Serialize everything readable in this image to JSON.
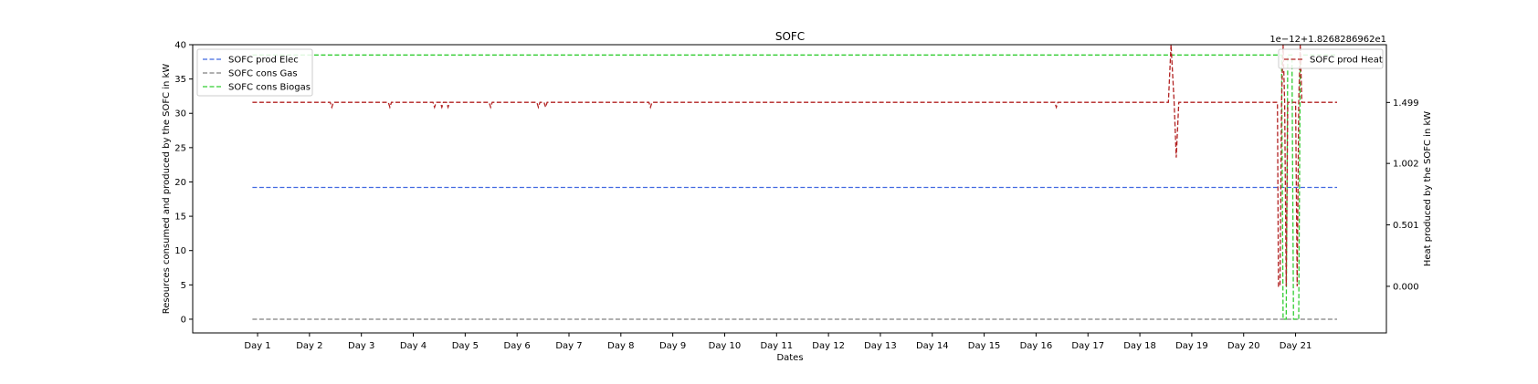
{
  "chart_data": {
    "type": "line",
    "title": "SOFC",
    "xlabel": "Dates",
    "ylabel": "Resources consumed and produced by the SOFC in kW",
    "ylabel_right": "Heat produced by the SOFC in kW",
    "offset_label_right": "1e−12+1.8268286962e1",
    "categories": [
      "Day 1",
      "Day 2",
      "Day 3",
      "Day 4",
      "Day 5",
      "Day 6",
      "Day 7",
      "Day 8",
      "Day 9",
      "Day 10",
      "Day 11",
      "Day 12",
      "Day 13",
      "Day 14",
      "Day 15",
      "Day 16",
      "Day 17",
      "Day 18",
      "Day 19",
      "Day 20",
      "Day 21"
    ],
    "xlim": [
      -0.25,
      22.75
    ],
    "ylim": [
      -2,
      40
    ],
    "yticks": [
      0,
      5,
      10,
      15,
      20,
      25,
      30,
      35,
      40
    ],
    "ylim_right": [
      -0.38,
      1.97
    ],
    "yticks_right": [
      0.0,
      0.501,
      1.002,
      1.499
    ],
    "yticks_right_labels": [
      "0.000",
      "0.501",
      "1.002",
      "1.499"
    ],
    "grid": false,
    "legend_left": "top-left",
    "legend_right": "top-right",
    "series": [
      {
        "name": "SOFC prod Elec",
        "axis": "left",
        "color": "#4169e1",
        "points": [
          [
            0.9,
            19.2
          ],
          [
            21.8,
            19.2
          ]
        ]
      },
      {
        "name": "SOFC cons Gas",
        "axis": "left",
        "color": "#808080",
        "points": [
          [
            0.9,
            0
          ],
          [
            21.8,
            0
          ]
        ]
      },
      {
        "name": "SOFC cons Biogas",
        "axis": "left",
        "color": "#32cd32",
        "points": [
          [
            0.9,
            38.5
          ],
          [
            20.73,
            38.5
          ],
          [
            20.76,
            0
          ],
          [
            20.82,
            0
          ],
          [
            20.85,
            38.5
          ],
          [
            20.93,
            38.5
          ],
          [
            20.96,
            0
          ],
          [
            21.06,
            0
          ],
          [
            21.09,
            38.5
          ],
          [
            21.8,
            38.5
          ]
        ]
      },
      {
        "name": "SOFC prod Heat",
        "axis": "right",
        "color": "#b22222",
        "points": [
          [
            0.9,
            1.5
          ],
          [
            2.4,
            1.5
          ],
          [
            2.43,
            1.46
          ],
          [
            2.46,
            1.5
          ],
          [
            3.52,
            1.5
          ],
          [
            3.55,
            1.46
          ],
          [
            3.58,
            1.5
          ],
          [
            4.38,
            1.5
          ],
          [
            4.41,
            1.46
          ],
          [
            4.44,
            1.5
          ],
          [
            4.52,
            1.5
          ],
          [
            4.55,
            1.46
          ],
          [
            4.58,
            1.5
          ],
          [
            4.64,
            1.5
          ],
          [
            4.67,
            1.46
          ],
          [
            4.7,
            1.5
          ],
          [
            5.46,
            1.5
          ],
          [
            5.49,
            1.46
          ],
          [
            5.52,
            1.5
          ],
          [
            6.38,
            1.5
          ],
          [
            6.41,
            1.46
          ],
          [
            6.44,
            1.5
          ],
          [
            6.52,
            1.5
          ],
          [
            6.55,
            1.46
          ],
          [
            6.58,
            1.5
          ],
          [
            8.54,
            1.5
          ],
          [
            8.57,
            1.46
          ],
          [
            8.6,
            1.5
          ],
          [
            16.36,
            1.5
          ],
          [
            16.39,
            1.46
          ],
          [
            16.42,
            1.5
          ],
          [
            18.55,
            1.5
          ],
          [
            18.6,
            1.97
          ],
          [
            18.66,
            1.5
          ],
          [
            18.7,
            1.05
          ],
          [
            18.75,
            1.5
          ],
          [
            20.65,
            1.5
          ],
          [
            20.67,
            0
          ],
          [
            20.7,
            0
          ],
          [
            20.73,
            1.5
          ],
          [
            20.76,
            1.97
          ],
          [
            20.79,
            1.5
          ],
          [
            20.82,
            0
          ],
          [
            20.85,
            1.5
          ],
          [
            21.0,
            1.5
          ],
          [
            21.03,
            0
          ],
          [
            21.06,
            1.5
          ],
          [
            21.09,
            1.97
          ],
          [
            21.12,
            1.5
          ],
          [
            21.8,
            1.5
          ]
        ]
      }
    ]
  }
}
